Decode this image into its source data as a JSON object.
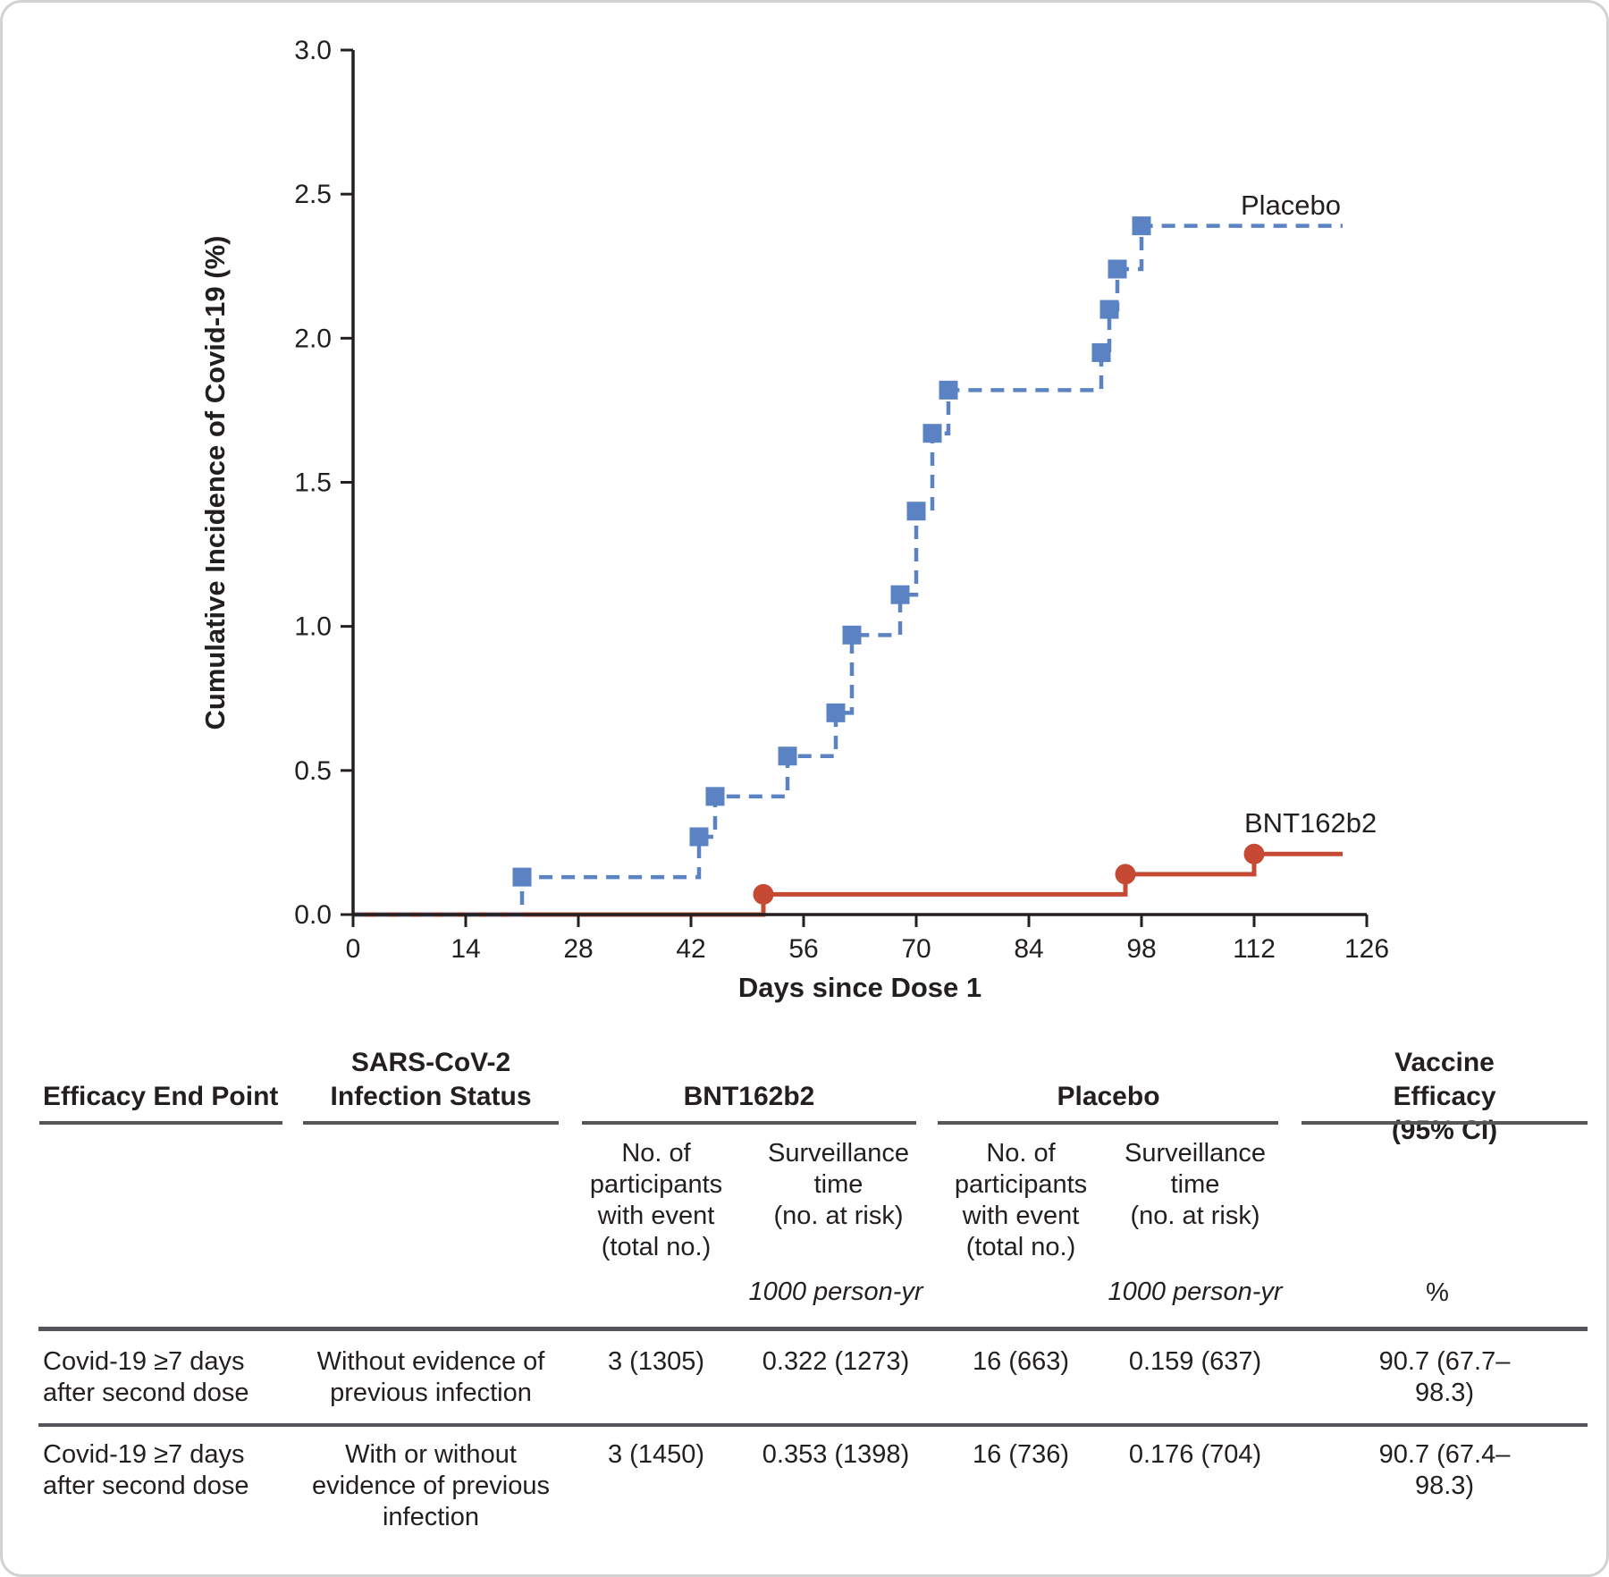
{
  "chart_data": {
    "type": "line",
    "subtype": "kaplan-meier-step",
    "title": "",
    "xlabel": "Days since Dose 1",
    "ylabel": "Cumulative Incidence of Covid-19 (%)",
    "xlim": [
      0,
      126
    ],
    "ylim": [
      0,
      3.0
    ],
    "grid": false,
    "legend_position": "inline-curve-labels",
    "x_ticks": [
      0,
      14,
      28,
      42,
      56,
      70,
      84,
      98,
      112,
      126
    ],
    "x_tick_labels": [
      "0",
      "14",
      "28",
      "42",
      "56",
      "70",
      "84",
      "98",
      "112",
      "126"
    ],
    "y_ticks": [
      0.0,
      0.5,
      1.0,
      1.5,
      2.0,
      2.5,
      3.0
    ],
    "y_tick_labels": [
      "0.0",
      "0.5",
      "1.0",
      "1.5",
      "2.0",
      "2.5",
      "3.0"
    ],
    "series": [
      {
        "name": "Placebo",
        "color": "#5b82c2",
        "line_style": "dashed",
        "marker": "square",
        "start": [
          0,
          0
        ],
        "events": [
          [
            21,
            0.13
          ],
          [
            43,
            0.27
          ],
          [
            45,
            0.41
          ],
          [
            54,
            0.55
          ],
          [
            60,
            0.7
          ],
          [
            62,
            0.97
          ],
          [
            68,
            1.11
          ],
          [
            70,
            1.4
          ],
          [
            72,
            1.67
          ],
          [
            74,
            1.82
          ],
          [
            93,
            1.95
          ],
          [
            94,
            2.1
          ],
          [
            95,
            2.24
          ],
          [
            98,
            2.39
          ]
        ],
        "curve_end_day": 123
      },
      {
        "name": "BNT162b2",
        "color": "#c64a33",
        "line_style": "solid",
        "marker": "circle",
        "start": [
          0,
          0
        ],
        "events": [
          [
            51,
            0.07
          ],
          [
            96,
            0.14
          ],
          [
            112,
            0.21
          ]
        ],
        "curve_end_day": 123
      }
    ]
  },
  "table": {
    "col_headers": {
      "endpoint": "Efficacy End Point",
      "infection": "SARS-CoV-2\nInfection Status",
      "bnt": "BNT162b2",
      "placebo": "Placebo",
      "ve": "Vaccine Efficacy\n(95% CI)"
    },
    "sub_headers": {
      "participants": "No. of\nparticipants\nwith event\n(total no.)",
      "surveillance": "Surveillance\ntime\n(no. at risk)"
    },
    "units": {
      "person_yr": "1000 person-yr",
      "percent": "%"
    },
    "rows": [
      {
        "endpoint": "Covid-19 ≥7 days\nafter second dose",
        "infection": "Without evidence of\nprevious infection",
        "bnt_events": "3 (1305)",
        "bnt_surv": "0.322 (1273)",
        "placebo_events": "16 (663)",
        "placebo_surv": "0.159 (637)",
        "ve": "90.7 (67.7–98.3)"
      },
      {
        "endpoint": "Covid-19 ≥7 days\nafter second dose",
        "infection": "With or without\nevidence of previous\ninfection",
        "bnt_events": "3 (1450)",
        "bnt_surv": "0.353 (1398)",
        "placebo_events": "16 (736)",
        "placebo_surv": "0.176 (704)",
        "ve": "90.7 (67.4–98.3)"
      }
    ]
  }
}
